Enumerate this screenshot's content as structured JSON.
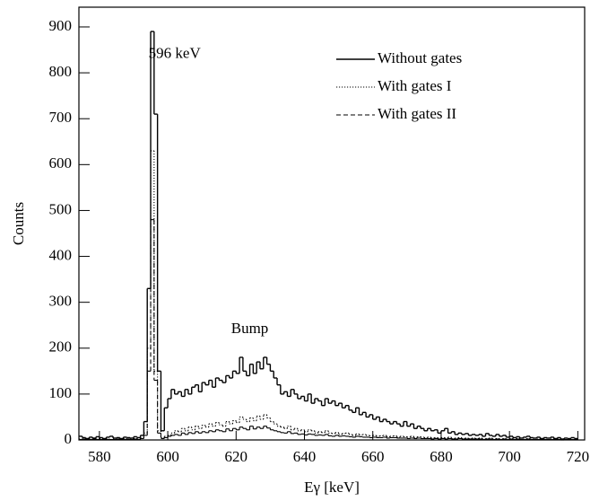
{
  "chart_data": {
    "type": "histogram",
    "x_label": "Eγ [keV]",
    "y_label": "Counts",
    "annotations": [
      {
        "text": "596 keV",
        "x": 602,
        "y": 840
      },
      {
        "text": "Bump",
        "x": 624,
        "y": 240
      }
    ],
    "xlim": [
      574,
      722
    ],
    "ylim": [
      0,
      943
    ],
    "xticks": [
      580,
      600,
      620,
      640,
      660,
      680,
      700,
      720
    ],
    "yticks": [
      0,
      100,
      200,
      300,
      400,
      500,
      600,
      700,
      800,
      900
    ],
    "legend": "upper right",
    "bins": [
      574,
      575,
      576,
      577,
      578,
      579,
      580,
      581,
      582,
      583,
      584,
      585,
      586,
      587,
      588,
      589,
      590,
      591,
      592,
      593,
      594,
      595,
      596,
      597,
      598,
      599,
      600,
      601,
      602,
      603,
      604,
      605,
      606,
      607,
      608,
      609,
      610,
      611,
      612,
      613,
      614,
      615,
      616,
      617,
      618,
      619,
      620,
      621,
      622,
      623,
      624,
      625,
      626,
      627,
      628,
      629,
      630,
      631,
      632,
      633,
      634,
      635,
      636,
      637,
      638,
      639,
      640,
      641,
      642,
      643,
      644,
      645,
      646,
      647,
      648,
      649,
      650,
      651,
      652,
      653,
      654,
      655,
      656,
      657,
      658,
      659,
      660,
      661,
      662,
      663,
      664,
      665,
      666,
      667,
      668,
      669,
      670,
      671,
      672,
      673,
      674,
      675,
      676,
      677,
      678,
      679,
      680,
      681,
      682,
      683,
      684,
      685,
      686,
      687,
      688,
      689,
      690,
      691,
      692,
      693,
      694,
      695,
      696,
      697,
      698,
      699,
      700,
      701,
      702,
      703,
      704,
      705,
      706,
      707,
      708,
      709,
      710,
      711,
      712,
      713,
      714,
      715,
      716,
      717,
      718,
      719,
      720
    ],
    "series": [
      {
        "name": "Without gates",
        "color": "#000000",
        "linestyle": "solid",
        "values": [
          8,
          5,
          3,
          6,
          4,
          7,
          5,
          3,
          6,
          8,
          4,
          5,
          3,
          6,
          5,
          4,
          7,
          5,
          10,
          40,
          330,
          890,
          710,
          150,
          20,
          70,
          90,
          110,
          100,
          105,
          95,
          110,
          100,
          115,
          120,
          105,
          125,
          120,
          130,
          115,
          135,
          130,
          125,
          140,
          135,
          150,
          145,
          180,
          150,
          140,
          165,
          145,
          170,
          155,
          180,
          165,
          150,
          135,
          120,
          100,
          105,
          95,
          110,
          100,
          90,
          95,
          85,
          100,
          80,
          90,
          85,
          75,
          90,
          80,
          85,
          75,
          80,
          70,
          75,
          65,
          60,
          70,
          55,
          60,
          50,
          55,
          45,
          50,
          40,
          45,
          40,
          35,
          40,
          35,
          30,
          40,
          30,
          35,
          25,
          30,
          25,
          20,
          25,
          20,
          22,
          15,
          20,
          25,
          15,
          18,
          12,
          15,
          12,
          14,
          10,
          12,
          10,
          12,
          8,
          14,
          10,
          8,
          12,
          8,
          10,
          6,
          8,
          5,
          7,
          4,
          6,
          8,
          5,
          4,
          6,
          3,
          5,
          4,
          6,
          3,
          5,
          2,
          4,
          3,
          5,
          3
        ]
      },
      {
        "name": "With gates I",
        "color": "#000000",
        "linestyle": "dotted",
        "values": [
          2,
          1,
          3,
          2,
          1,
          2,
          3,
          1,
          2,
          1,
          2,
          1,
          2,
          3,
          1,
          2,
          3,
          2,
          4,
          15,
          200,
          630,
          150,
          20,
          5,
          8,
          10,
          15,
          20,
          18,
          25,
          20,
          28,
          22,
          30,
          25,
          32,
          28,
          35,
          30,
          38,
          33,
          30,
          40,
          35,
          42,
          38,
          50,
          45,
          40,
          48,
          42,
          52,
          45,
          55,
          48,
          40,
          35,
          30,
          28,
          25,
          30,
          22,
          25,
          20,
          22,
          18,
          22,
          20,
          15,
          18,
          16,
          20,
          15,
          14,
          16,
          12,
          14,
          15,
          12,
          10,
          13,
          11,
          12,
          10,
          9,
          10,
          8,
          9,
          10,
          7,
          8,
          9,
          6,
          8,
          7,
          6,
          8,
          5,
          7,
          6,
          5,
          6,
          4,
          5,
          4,
          5,
          4,
          6,
          3,
          4,
          5,
          3,
          4,
          3,
          4,
          3,
          4,
          2,
          3,
          4,
          2,
          3,
          2,
          3,
          2,
          3,
          2,
          3,
          1,
          2,
          3,
          2,
          1,
          2,
          1,
          2,
          1,
          2,
          1,
          2,
          1,
          1,
          2,
          1,
          1
        ]
      },
      {
        "name": "With gates II",
        "color": "#000000",
        "linestyle": "dashed",
        "values": [
          1,
          2,
          1,
          1,
          2,
          1,
          1,
          2,
          1,
          1,
          1,
          2,
          1,
          1,
          2,
          1,
          2,
          1,
          3,
          10,
          150,
          480,
          130,
          15,
          3,
          5,
          8,
          10,
          12,
          10,
          15,
          12,
          16,
          14,
          18,
          15,
          18,
          16,
          20,
          18,
          22,
          20,
          18,
          24,
          20,
          25,
          22,
          28,
          25,
          22,
          30,
          24,
          28,
          25,
          30,
          26,
          22,
          20,
          18,
          16,
          15,
          18,
          14,
          15,
          12,
          13,
          11,
          13,
          12,
          10,
          11,
          10,
          12,
          9,
          8,
          10,
          8,
          9,
          8,
          7,
          6,
          8,
          7,
          6,
          6,
          5,
          6,
          5,
          5,
          6,
          4,
          5,
          5,
          4,
          4,
          4,
          3,
          4,
          3,
          4,
          3,
          3,
          3,
          2,
          3,
          2,
          3,
          2,
          3,
          2,
          2,
          3,
          2,
          2,
          2,
          2,
          2,
          2,
          1,
          2,
          2,
          1,
          2,
          1,
          2,
          1,
          2,
          1,
          2,
          1,
          1,
          2,
          1,
          1,
          1,
          1,
          1,
          1,
          1,
          1,
          1,
          0,
          1,
          1,
          1,
          1
        ]
      }
    ]
  }
}
